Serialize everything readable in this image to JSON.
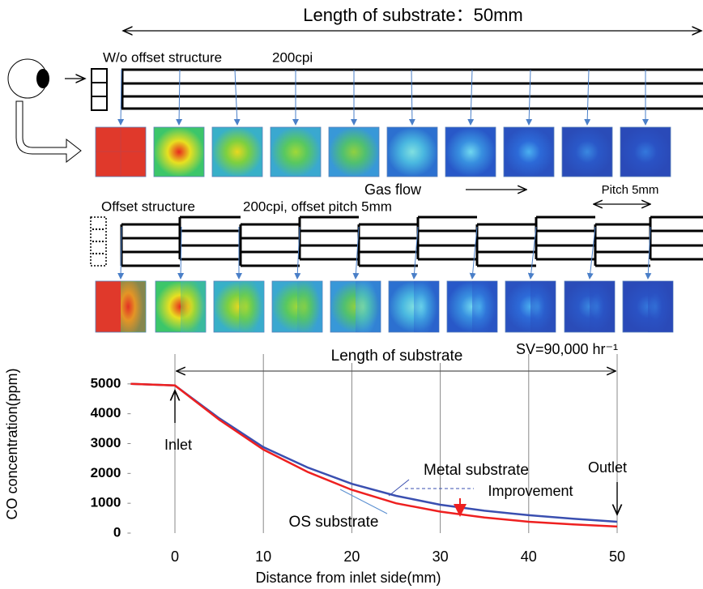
{
  "diagram": {
    "length_label": "Length of substrate：50mm",
    "no_offset": {
      "label": "W/o offset structure",
      "cell_density": "200cpi"
    },
    "gas_flow": "Gas flow",
    "pitch": "Pitch 5mm",
    "offset": {
      "label": "Offset structure",
      "cell_density": "200cpi, offset pitch 5mm"
    }
  },
  "chart_data": {
    "type": "line",
    "annotations": {
      "length_label": "Length of substrate",
      "condition": "SV=90,000 hr⁻¹",
      "inlet": "Inlet",
      "outlet": "Outlet",
      "improvement": "Improvement"
    },
    "xlabel": "Distance from inlet side(mm)",
    "ylabel": "CO concentration(ppm)",
    "x": [
      -5,
      0,
      5,
      10,
      15,
      20,
      25,
      30,
      35,
      40,
      45,
      50
    ],
    "series": [
      {
        "name": "Metal substrate",
        "color": "#3a4fb0",
        "values": [
          5000,
          4950,
          3850,
          2880,
          2200,
          1650,
          1250,
          950,
          750,
          600,
          480,
          380
        ]
      },
      {
        "name": "OS substrate",
        "color": "#ee2020",
        "values": [
          5000,
          4950,
          3800,
          2800,
          2050,
          1450,
          1000,
          720,
          520,
          380,
          290,
          220
        ]
      }
    ],
    "xlim": [
      -5,
      55
    ],
    "ylim": [
      0,
      6000
    ],
    "xticks": [
      0,
      10,
      20,
      30,
      40,
      50
    ],
    "yticks": [
      0,
      1000,
      2000,
      3000,
      4000,
      5000
    ],
    "grid": "x"
  }
}
